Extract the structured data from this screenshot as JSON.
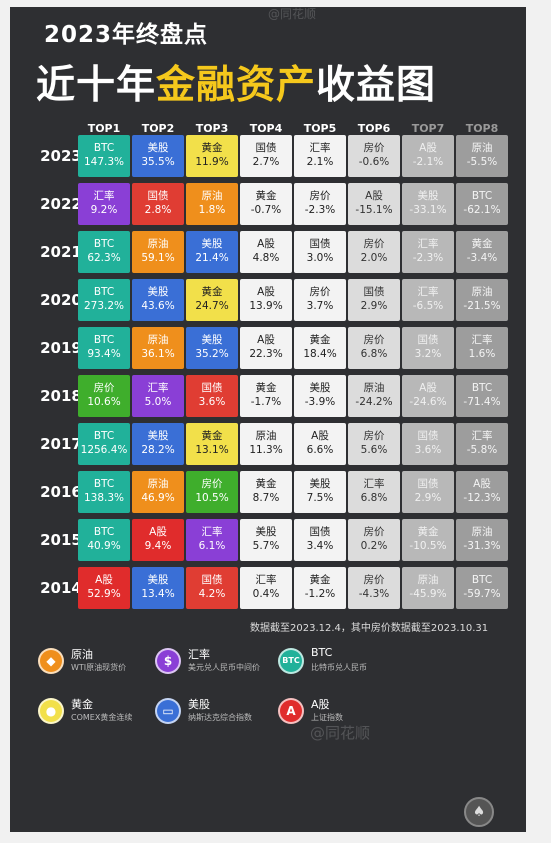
{
  "title_line1": "2023年终盘点",
  "title_line2_a": "近十年",
  "title_line2_b": "金融资产",
  "title_line2_c": "收益图",
  "headers": [
    "TOP1",
    "TOP2",
    "TOP3",
    "TOP4",
    "TOP5",
    "TOP6",
    "TOP7",
    "TOP8"
  ],
  "colors": {
    "BTC": "#21b19a",
    "美股": "#3a6fd6",
    "黄金": "#f2e04a",
    "国债": "#e03d33",
    "汇率": "#8a3fd6",
    "原油": "#ef8f1c",
    "房价": "#3fae2c",
    "A股": "#e02c2c",
    "neutral": "#f3f3f3",
    "faded": "#b8b8b8",
    "faded_dark": "#9d9d9d"
  },
  "rows": [
    {
      "year": "2023",
      "cells": [
        [
          "BTC",
          "147.3%"
        ],
        [
          "美股",
          "35.5%"
        ],
        [
          "黄金",
          "11.9%"
        ],
        [
          "国债",
          "2.7%"
        ],
        [
          "汇率",
          "2.1%"
        ],
        [
          "房价",
          "-0.6%"
        ],
        [
          "A股",
          "-2.1%"
        ],
        [
          "原油",
          "-5.5%"
        ]
      ]
    },
    {
      "year": "2022",
      "cells": [
        [
          "汇率",
          "9.2%"
        ],
        [
          "国债",
          "2.8%"
        ],
        [
          "原油",
          "1.8%"
        ],
        [
          "黄金",
          "-0.7%"
        ],
        [
          "房价",
          "-2.3%"
        ],
        [
          "A股",
          "-15.1%"
        ],
        [
          "美股",
          "-33.1%"
        ],
        [
          "BTC",
          "-62.1%"
        ]
      ]
    },
    {
      "year": "2021",
      "cells": [
        [
          "BTC",
          "62.3%"
        ],
        [
          "原油",
          "59.1%"
        ],
        [
          "美股",
          "21.4%"
        ],
        [
          "A股",
          "4.8%"
        ],
        [
          "国债",
          "3.0%"
        ],
        [
          "房价",
          "2.0%"
        ],
        [
          "汇率",
          "-2.3%"
        ],
        [
          "黄金",
          "-3.4%"
        ]
      ]
    },
    {
      "year": "2020",
      "cells": [
        [
          "BTC",
          "273.2%"
        ],
        [
          "美股",
          "43.6%"
        ],
        [
          "黄金",
          "24.7%"
        ],
        [
          "A股",
          "13.9%"
        ],
        [
          "房价",
          "3.7%"
        ],
        [
          "国债",
          "2.9%"
        ],
        [
          "汇率",
          "-6.5%"
        ],
        [
          "原油",
          "-21.5%"
        ]
      ]
    },
    {
      "year": "2019",
      "cells": [
        [
          "BTC",
          "93.4%"
        ],
        [
          "原油",
          "36.1%"
        ],
        [
          "美股",
          "35.2%"
        ],
        [
          "A股",
          "22.3%"
        ],
        [
          "黄金",
          "18.4%"
        ],
        [
          "房价",
          "6.8%"
        ],
        [
          "国债",
          "3.2%"
        ],
        [
          "汇率",
          "1.6%"
        ]
      ]
    },
    {
      "year": "2018",
      "cells": [
        [
          "房价",
          "10.6%"
        ],
        [
          "汇率",
          "5.0%"
        ],
        [
          "国债",
          "3.6%"
        ],
        [
          "黄金",
          "-1.7%"
        ],
        [
          "美股",
          "-3.9%"
        ],
        [
          "原油",
          "-24.2%"
        ],
        [
          "A股",
          "-24.6%"
        ],
        [
          "BTC",
          "-71.4%"
        ]
      ]
    },
    {
      "year": "2017",
      "cells": [
        [
          "BTC",
          "1256.4%"
        ],
        [
          "美股",
          "28.2%"
        ],
        [
          "黄金",
          "13.1%"
        ],
        [
          "原油",
          "11.3%"
        ],
        [
          "A股",
          "6.6%"
        ],
        [
          "房价",
          "5.6%"
        ],
        [
          "国债",
          "3.6%"
        ],
        [
          "汇率",
          "-5.8%"
        ]
      ]
    },
    {
      "year": "2016",
      "cells": [
        [
          "BTC",
          "138.3%"
        ],
        [
          "原油",
          "46.9%"
        ],
        [
          "房价",
          "10.5%"
        ],
        [
          "黄金",
          "8.7%"
        ],
        [
          "美股",
          "7.5%"
        ],
        [
          "汇率",
          "6.8%"
        ],
        [
          "国债",
          "2.9%"
        ],
        [
          "A股",
          "-12.3%"
        ]
      ]
    },
    {
      "year": "2015",
      "cells": [
        [
          "BTC",
          "40.9%"
        ],
        [
          "A股",
          "9.4%"
        ],
        [
          "汇率",
          "6.1%"
        ],
        [
          "美股",
          "5.7%"
        ],
        [
          "国债",
          "3.4%"
        ],
        [
          "房价",
          "0.2%"
        ],
        [
          "黄金",
          "-10.5%"
        ],
        [
          "原油",
          "-31.3%"
        ]
      ]
    },
    {
      "year": "2014",
      "cells": [
        [
          "A股",
          "52.9%"
        ],
        [
          "美股",
          "13.4%"
        ],
        [
          "国债",
          "4.2%"
        ],
        [
          "汇率",
          "0.4%"
        ],
        [
          "黄金",
          "-1.2%"
        ],
        [
          "房价",
          "-4.3%"
        ],
        [
          "原油",
          "-45.9%"
        ],
        [
          "BTC",
          "-59.7%"
        ]
      ]
    }
  ],
  "note": "数据截至2023.12.4，其中房价数据截至2023.10.31",
  "legend": [
    {
      "name": "原油",
      "desc": "WTI原油现货价",
      "icon": "oil-drop-icon",
      "color": "#ef8f1c",
      "glyph": "◆"
    },
    {
      "name": "汇率",
      "desc": "美元兑人民币中间价",
      "icon": "dollar-icon",
      "color": "#8a3fd6",
      "glyph": "$"
    },
    {
      "name": "BTC",
      "desc": "比特币兑人民币",
      "icon": "btc-icon",
      "color": "#21b19a",
      "glyph": "BTC"
    },
    {
      "name": "黄金",
      "desc": "COMEX黄金连续",
      "icon": "gold-icon",
      "color": "#f2e04a",
      "glyph": "●"
    },
    {
      "name": "美股",
      "desc": "纳斯达克综合指数",
      "icon": "us-stock-icon",
      "color": "#3a6fd6",
      "glyph": "▭"
    },
    {
      "name": "A股",
      "desc": "上证指数",
      "icon": "a-share-icon",
      "color": "#e02c2c",
      "glyph": "A"
    }
  ],
  "watermark": "@同花顺"
}
